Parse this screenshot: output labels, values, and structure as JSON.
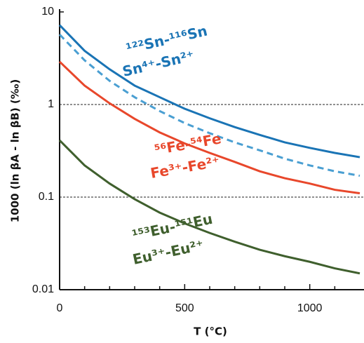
{
  "chart_data": {
    "type": "line",
    "xlabel": "T (°C)",
    "ylabel": "1000 (ln βA - ln βB) (‰)",
    "x": [
      0,
      100,
      200,
      300,
      400,
      500,
      600,
      700,
      800,
      900,
      1000,
      1100,
      1200
    ],
    "series": [
      {
        "color": "#1a74b5",
        "dash": false,
        "values": [
          7.2,
          3.8,
          2.4,
          1.6,
          1.2,
          0.9,
          0.71,
          0.57,
          0.47,
          0.39,
          0.34,
          0.3,
          0.27
        ]
      },
      {
        "color": "#4a9fd2",
        "dash": true,
        "values": [
          5.7,
          3.0,
          1.8,
          1.2,
          0.85,
          0.63,
          0.49,
          0.39,
          0.32,
          0.26,
          0.22,
          0.19,
          0.17
        ]
      },
      {
        "color": "#e8472b",
        "dash": false,
        "values": [
          2.9,
          1.6,
          1.03,
          0.7,
          0.5,
          0.38,
          0.3,
          0.24,
          0.19,
          0.16,
          0.14,
          0.12,
          0.11
        ]
      },
      {
        "color": "#3f5f2d",
        "dash": false,
        "values": [
          0.41,
          0.22,
          0.14,
          0.095,
          0.068,
          0.052,
          0.041,
          0.033,
          0.027,
          0.023,
          0.02,
          0.017,
          0.015
        ]
      }
    ],
    "annotations": [
      {
        "text": "¹²²Sn-¹¹⁶Sn",
        "color": "#1a74b5"
      },
      {
        "text": "Sn⁴⁺-Sn²⁺",
        "color": "#1a74b5"
      },
      {
        "text": "⁵⁶Fe-⁵⁴Fe",
        "color": "#e8472b"
      },
      {
        "text": "Fe³⁺-Fe²⁺",
        "color": "#e8472b"
      },
      {
        "text": "¹⁵³Eu-¹⁵¹Eu",
        "color": "#3f5f2d"
      },
      {
        "text": "Eu³⁺-Eu²⁺",
        "color": "#3f5f2d"
      }
    ],
    "xlim": [
      0,
      1200
    ],
    "xticks": [
      0,
      500,
      1000
    ],
    "xminorticks": [
      100,
      200,
      300,
      400,
      600,
      700,
      800,
      900,
      1100
    ],
    "ylim": [
      0.01,
      10
    ],
    "yticks": [
      10,
      1,
      0.1,
      0.01
    ],
    "ylog": true,
    "grid": "dashed"
  }
}
